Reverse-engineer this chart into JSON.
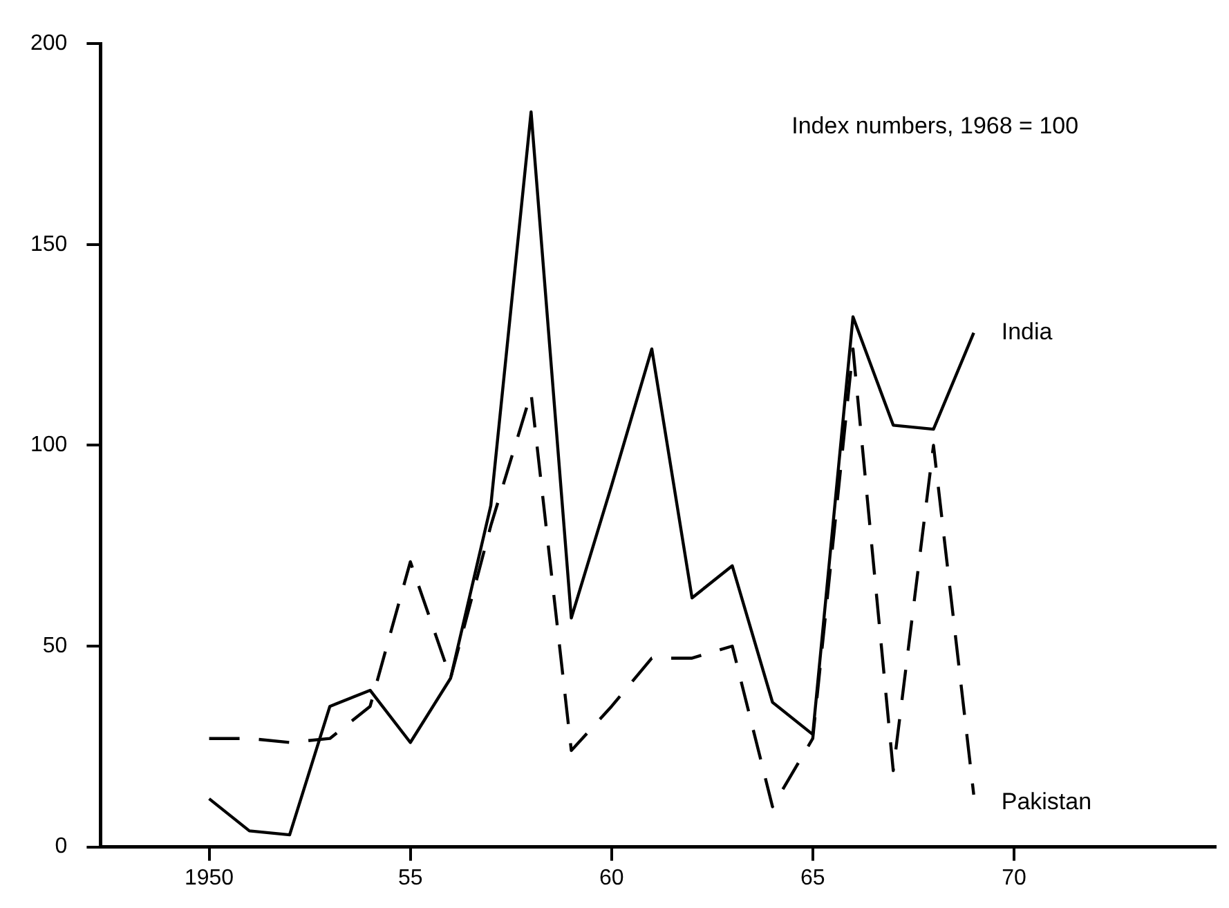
{
  "chart_data": {
    "type": "line",
    "annotations": [
      "Index numbers, 1968 = 100"
    ],
    "x": [
      1950,
      1951,
      1952,
      1953,
      1954,
      1955,
      1956,
      1957,
      1958,
      1959,
      1960,
      1961,
      1962,
      1963,
      1964,
      1965,
      1966,
      1967,
      1968,
      1969
    ],
    "series": [
      {
        "name": "India",
        "color": "#000000",
        "line_style": "solid",
        "values": [
          12,
          4,
          3,
          35,
          39,
          26,
          42,
          85,
          183,
          57,
          90,
          124,
          62,
          70,
          36,
          28,
          132,
          105,
          104,
          128
        ]
      },
      {
        "name": "Pakistan",
        "color": "#000000",
        "line_style": "dashed",
        "values": [
          27,
          27,
          26,
          27,
          35,
          71,
          42,
          80,
          113,
          24,
          35,
          47,
          47,
          50,
          10,
          27,
          124,
          19,
          100,
          13
        ]
      }
    ],
    "xlim": [
      1947.3,
      1975
    ],
    "xticks": [
      {
        "value": 1950,
        "label": "1950"
      },
      {
        "value": 1955,
        "label": "55"
      },
      {
        "value": 1960,
        "label": "60"
      },
      {
        "value": 1965,
        "label": "65"
      },
      {
        "value": 1970,
        "label": "70"
      }
    ],
    "ylim": [
      0,
      200
    ],
    "yticks": [
      0,
      50,
      100,
      150,
      200
    ],
    "marker": "none"
  }
}
